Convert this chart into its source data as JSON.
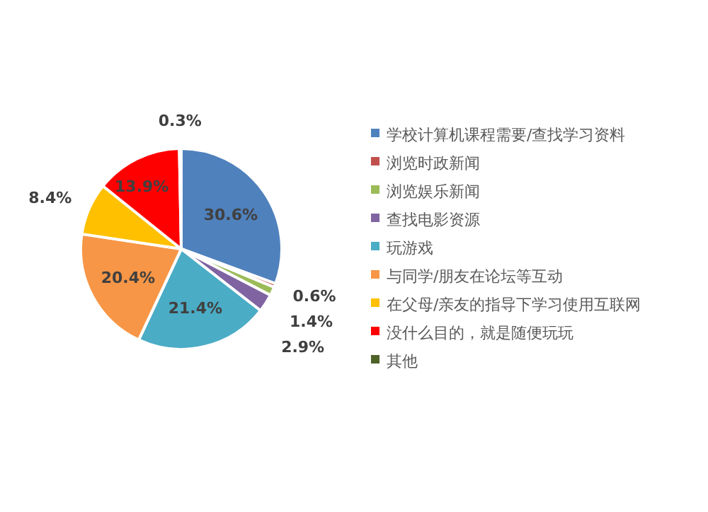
{
  "chart_data": {
    "type": "pie",
    "categories": [
      "学校计算机课程需要/查找学习资料",
      "浏览时政新闻",
      "浏览娱乐新闻",
      "查找电影资源",
      "玩游戏",
      "与同学/朋友在论坛等互动",
      "在父母/亲友的指导下学习使用互联网",
      "没什么目的，就是随便玩玩",
      "其他"
    ],
    "values": [
      30.6,
      0.6,
      1.4,
      2.9,
      21.4,
      20.4,
      8.4,
      13.9,
      0.3
    ],
    "colors": [
      "#4f81bd",
      "#c0504d",
      "#9bbb59",
      "#8064a2",
      "#4bacc6",
      "#f79646",
      "#ffc000",
      "#ff0000",
      "#4f6228"
    ],
    "value_labels": [
      "30.6%",
      "0.6%",
      "1.4%",
      "2.9%",
      "21.4%",
      "20.4%",
      "8.4%",
      "13.9%",
      "0.3%"
    ],
    "legend": "right"
  }
}
